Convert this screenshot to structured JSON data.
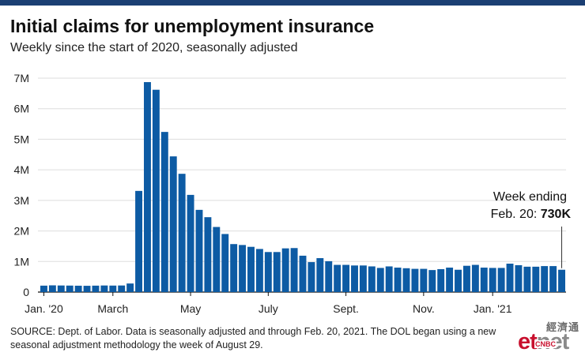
{
  "colors": {
    "bar": "#0d5ba4",
    "topbar": "#1b3f73",
    "axis": "#111111",
    "grid": "#dddddd"
  },
  "title": "Initial claims for unemployment insurance",
  "subtitle": "Weekly since the start of 2020, seasonally adjusted",
  "annotation": {
    "line1": "Week ending",
    "line2_prefix": "Feb. 20: ",
    "line2_value": "730K"
  },
  "source": "SOURCE: Dept. of Labor. Data is seasonally adjusted and through Feb. 20, 2021. The DOL began using a new seasonal adjustment methodology the week of August 29.",
  "logo": {
    "cn": "經濟通",
    "et": "et",
    "net": "net",
    "cnbc": "CNBC"
  },
  "chart_data": {
    "type": "bar",
    "title": "Initial claims for unemployment insurance",
    "subtitle": "Weekly since the start of 2020, seasonally adjusted",
    "unit": "claims",
    "ylim": [
      0,
      7000000
    ],
    "yticks": [
      0,
      1000000,
      2000000,
      3000000,
      4000000,
      5000000,
      6000000,
      7000000
    ],
    "ytick_labels": [
      "0",
      "1M",
      "2M",
      "3M",
      "4M",
      "5M",
      "6M",
      "7M"
    ],
    "xtick_labels": [
      {
        "label": "Jan. '20",
        "index": 0
      },
      {
        "label": "March",
        "index": 8
      },
      {
        "label": "May",
        "index": 17
      },
      {
        "label": "July",
        "index": 26
      },
      {
        "label": "Sept.",
        "index": 35
      },
      {
        "label": "Nov.",
        "index": 44
      },
      {
        "label": "Jan. '21",
        "index": 52
      }
    ],
    "grid": true,
    "values": [
      210000,
      220000,
      215000,
      212000,
      208000,
      205000,
      210000,
      215000,
      212000,
      215000,
      280000,
      3310000,
      6870000,
      6620000,
      5240000,
      4440000,
      3870000,
      3180000,
      2690000,
      2450000,
      2130000,
      1900000,
      1570000,
      1540000,
      1480000,
      1410000,
      1310000,
      1310000,
      1430000,
      1440000,
      1190000,
      980000,
      1110000,
      1010000,
      890000,
      890000,
      870000,
      870000,
      840000,
      790000,
      840000,
      800000,
      780000,
      760000,
      760000,
      720000,
      750000,
      800000,
      730000,
      860000,
      890000,
      800000,
      790000,
      790000,
      930000,
      880000,
      830000,
      830000,
      850000,
      850000,
      730000
    ]
  }
}
